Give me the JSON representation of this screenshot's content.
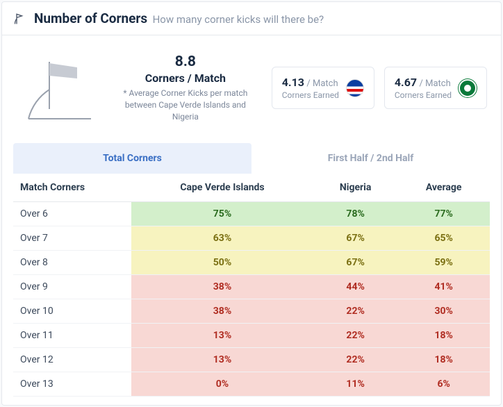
{
  "header": {
    "title": "Number of Corners",
    "subtitle": "How many corner kicks will there be?"
  },
  "summary": {
    "stat": "8.8",
    "label": "Corners / Match",
    "note": "* Average Corner Kicks per match between Cape Verde Islands and Nigeria"
  },
  "teams": [
    {
      "stat": "4.13",
      "per": "/ Match",
      "earned": "Corners Earned"
    },
    {
      "stat": "4.67",
      "per": "/ Match",
      "earned": "Corners Earned"
    }
  ],
  "tabs": {
    "active": "Total Corners",
    "inactive": "First Half / 2nd Half"
  },
  "table": {
    "columns": [
      "Match Corners",
      "Cape Verde Islands",
      "Nigeria",
      "Average"
    ],
    "rows": [
      {
        "label": "Over 6",
        "cells": [
          {
            "v": "75%",
            "c": "g"
          },
          {
            "v": "78%",
            "c": "g"
          },
          {
            "v": "77%",
            "c": "g"
          }
        ]
      },
      {
        "label": "Over 7",
        "cells": [
          {
            "v": "63%",
            "c": "y"
          },
          {
            "v": "67%",
            "c": "y"
          },
          {
            "v": "65%",
            "c": "y"
          }
        ]
      },
      {
        "label": "Over 8",
        "cells": [
          {
            "v": "50%",
            "c": "y"
          },
          {
            "v": "67%",
            "c": "y"
          },
          {
            "v": "59%",
            "c": "y"
          }
        ]
      },
      {
        "label": "Over 9",
        "cells": [
          {
            "v": "38%",
            "c": "r"
          },
          {
            "v": "44%",
            "c": "r"
          },
          {
            "v": "41%",
            "c": "r"
          }
        ]
      },
      {
        "label": "Over 10",
        "cells": [
          {
            "v": "38%",
            "c": "r"
          },
          {
            "v": "22%",
            "c": "r"
          },
          {
            "v": "30%",
            "c": "r"
          }
        ]
      },
      {
        "label": "Over 11",
        "cells": [
          {
            "v": "13%",
            "c": "r"
          },
          {
            "v": "22%",
            "c": "r"
          },
          {
            "v": "18%",
            "c": "r"
          }
        ]
      },
      {
        "label": "Over 12",
        "cells": [
          {
            "v": "13%",
            "c": "r"
          },
          {
            "v": "22%",
            "c": "r"
          },
          {
            "v": "18%",
            "c": "r"
          }
        ]
      },
      {
        "label": "Over 13",
        "cells": [
          {
            "v": "0%",
            "c": "r"
          },
          {
            "v": "11%",
            "c": "r"
          },
          {
            "v": "6%",
            "c": "r"
          }
        ]
      }
    ]
  },
  "colors": {
    "green_bg": "#d3efcb",
    "green_fg": "#2a6b1f",
    "yellow_bg": "#f7f3bf",
    "yellow_fg": "#7a6f12",
    "red_bg": "#f8d8d4",
    "red_fg": "#b02d22",
    "accent": "#3a6fc4"
  }
}
